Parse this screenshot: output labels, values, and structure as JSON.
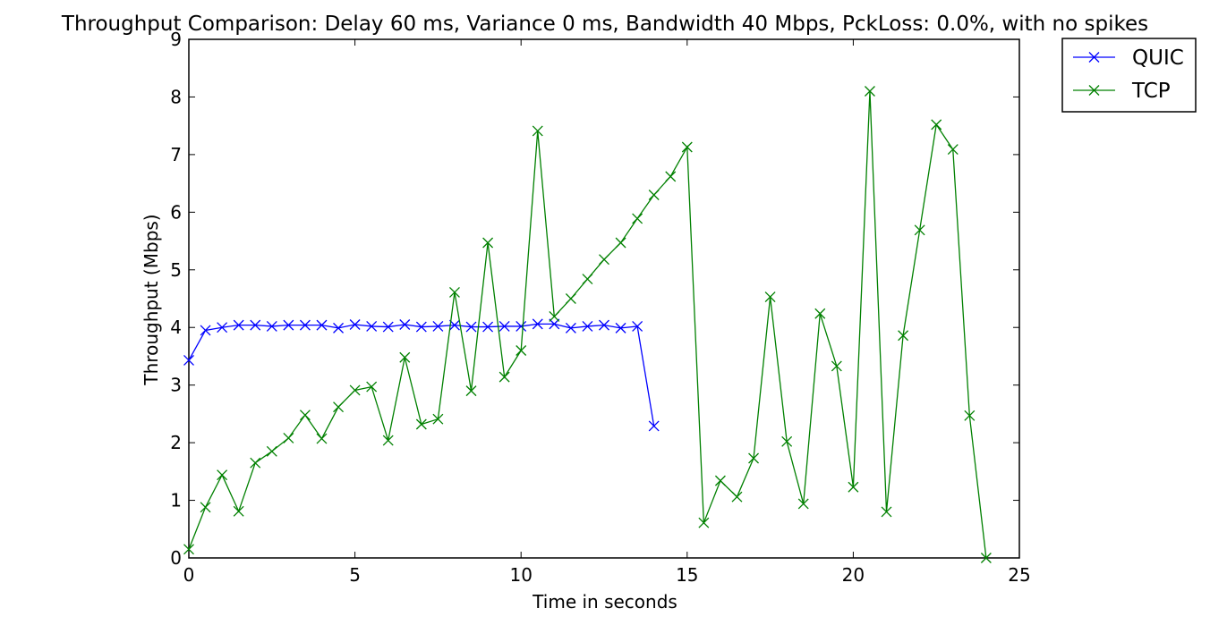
{
  "chart_data": {
    "type": "line",
    "title": "Throughput Comparison: Delay 60 ms, Variance 0 ms, Bandwidth 40 Mbps, PckLoss: 0.0%, with no spikes",
    "xlabel": "Time in seconds",
    "ylabel": "Throughput (Mbps)",
    "xlim": [
      0,
      25
    ],
    "ylim": [
      0,
      9
    ],
    "xticks": [
      0,
      5,
      10,
      15,
      20,
      25
    ],
    "yticks": [
      0,
      1,
      2,
      3,
      4,
      5,
      6,
      7,
      8,
      9
    ],
    "grid": false,
    "legend_position": "outside-top-right",
    "marker": "x",
    "series": [
      {
        "name": "QUIC",
        "color": "#0000ff",
        "x": [
          0,
          0.5,
          1,
          1.5,
          2,
          2.5,
          3,
          3.5,
          4,
          4.5,
          5,
          5.5,
          6,
          6.5,
          7,
          7.5,
          8,
          8.5,
          9,
          9.5,
          10,
          10.5,
          11,
          11.5,
          12,
          12.5,
          13,
          13.5,
          14
        ],
        "y": [
          3.43,
          3.95,
          4.0,
          4.04,
          4.04,
          4.02,
          4.04,
          4.04,
          4.04,
          3.99,
          4.05,
          4.02,
          4.01,
          4.05,
          4.01,
          4.02,
          4.04,
          4.01,
          4.01,
          4.02,
          4.02,
          4.06,
          4.06,
          3.99,
          4.02,
          4.04,
          3.99,
          4.02,
          2.29
        ]
      },
      {
        "name": "TCP",
        "color": "#008000",
        "x": [
          0,
          0.5,
          1,
          1.5,
          2,
          2.5,
          3,
          3.5,
          4,
          4.5,
          5,
          5.5,
          6,
          6.5,
          7,
          7.5,
          8,
          8.5,
          9,
          9.5,
          10,
          10.5,
          11,
          11.5,
          12,
          12.5,
          13,
          13.5,
          14,
          14.5,
          15,
          15.5,
          16,
          16.5,
          17,
          17.5,
          18,
          18.5,
          19,
          19.5,
          20,
          20.5,
          21,
          21.5,
          22,
          22.5,
          23,
          23.5,
          24
        ],
        "y": [
          0.15,
          0.88,
          1.44,
          0.81,
          1.65,
          1.85,
          2.08,
          2.48,
          2.07,
          2.62,
          2.91,
          2.97,
          2.04,
          3.48,
          2.32,
          2.41,
          4.61,
          2.9,
          5.47,
          3.14,
          3.6,
          7.41,
          4.19,
          4.5,
          4.84,
          5.18,
          5.47,
          5.89,
          6.3,
          6.62,
          7.13,
          0.61,
          1.34,
          1.06,
          1.73,
          4.53,
          2.02,
          0.94,
          4.24,
          3.33,
          1.23,
          8.1,
          0.8,
          3.86,
          5.69,
          7.52,
          7.09,
          2.47,
          0.0
        ]
      }
    ]
  }
}
